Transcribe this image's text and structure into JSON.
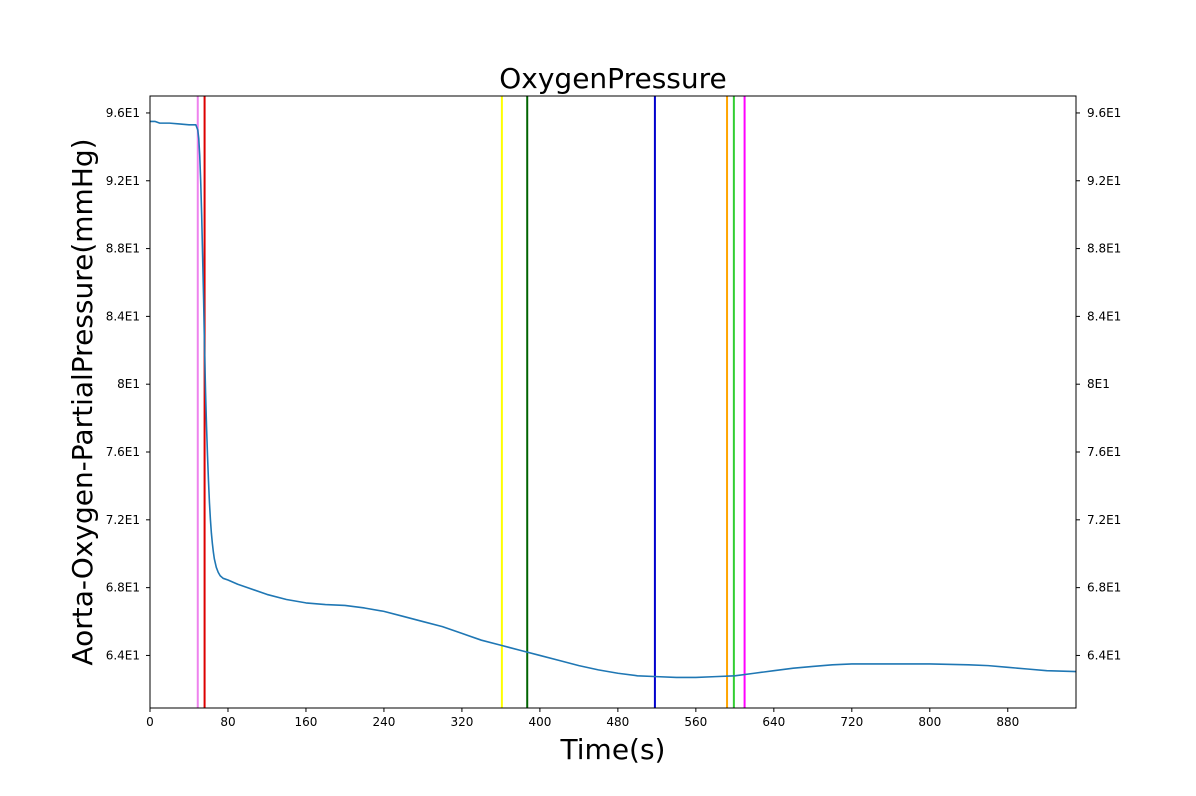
{
  "chart_data": {
    "type": "line",
    "title": "OxygenPressure",
    "xlabel": "Time(s)",
    "ylabel": "Aorta-Oxygen-PartialPressure(mmHg)",
    "xlim": [
      0,
      950
    ],
    "ylim": [
      60.9,
      97.0
    ],
    "x_ticks": [
      0,
      80,
      160,
      240,
      320,
      400,
      480,
      560,
      640,
      720,
      800,
      880
    ],
    "x_tick_labels": [
      "0",
      "80",
      "160",
      "240",
      "320",
      "400",
      "480",
      "560",
      "640",
      "720",
      "800",
      "880"
    ],
    "y_ticks": [
      64,
      68,
      72,
      76,
      80,
      84,
      88,
      92,
      96
    ],
    "y_tick_labels": [
      "6.4E1",
      "6.8E1",
      "7.2E1",
      "7.6E1",
      "8E1",
      "8.4E1",
      "8.8E1",
      "9.2E1",
      "9.6E1"
    ],
    "y_tick_labels_right": true,
    "grid": false,
    "series": [
      {
        "color": "#1f77b4",
        "x": [
          0,
          5,
          10,
          20,
          30,
          40,
          47,
          49,
          50,
          51,
          52,
          53,
          54,
          55,
          56,
          57,
          58,
          59,
          60,
          61,
          62,
          63,
          64,
          65,
          66,
          68,
          70,
          72,
          75,
          80,
          90,
          100,
          120,
          140,
          160,
          180,
          200,
          220,
          240,
          260,
          280,
          300,
          320,
          340,
          360,
          380,
          400,
          420,
          440,
          460,
          480,
          500,
          520,
          540,
          560,
          580,
          600,
          620,
          640,
          660,
          680,
          700,
          720,
          760,
          800,
          840,
          860,
          880,
          900,
          920,
          950
        ],
        "y": [
          95.5,
          95.5,
          95.4,
          95.4,
          95.35,
          95.3,
          95.3,
          95.0,
          94.5,
          93.5,
          92.0,
          90.0,
          87.5,
          85.0,
          82.0,
          79.5,
          77.5,
          75.8,
          74.3,
          73.0,
          72.0,
          71.2,
          70.6,
          70.1,
          69.7,
          69.2,
          68.9,
          68.7,
          68.55,
          68.45,
          68.2,
          68.0,
          67.6,
          67.3,
          67.1,
          67.0,
          66.95,
          66.8,
          66.6,
          66.3,
          66.0,
          65.7,
          65.3,
          64.9,
          64.6,
          64.3,
          64.0,
          63.7,
          63.4,
          63.15,
          62.95,
          62.8,
          62.75,
          62.7,
          62.7,
          62.75,
          62.8,
          62.95,
          63.1,
          63.25,
          63.35,
          63.45,
          63.5,
          63.5,
          63.5,
          63.45,
          63.4,
          63.3,
          63.2,
          63.1,
          63.05
        ]
      }
    ],
    "vlines": [
      {
        "x": 49,
        "color": "#ee82ee"
      },
      {
        "x": 56,
        "color": "#dd0000"
      },
      {
        "x": 361,
        "color": "#ffff00"
      },
      {
        "x": 387,
        "color": "#006400"
      },
      {
        "x": 518,
        "color": "#0000cd"
      },
      {
        "x": 592,
        "color": "#ffa500"
      },
      {
        "x": 599,
        "color": "#32cd32"
      },
      {
        "x": 610,
        "color": "#ff00ff"
      }
    ]
  }
}
